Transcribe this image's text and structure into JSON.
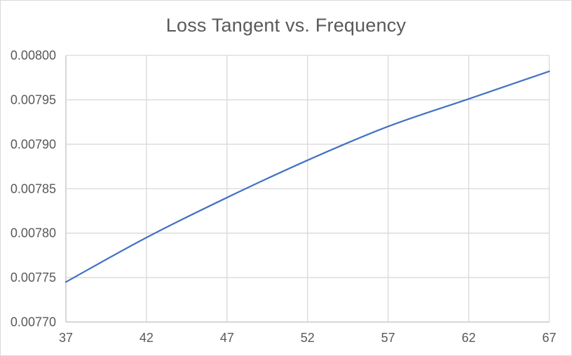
{
  "chart_data": {
    "type": "line",
    "title": "Loss Tangent vs. Frequency",
    "xlabel": "",
    "ylabel": "",
    "x": [
      37,
      42,
      47,
      52,
      57,
      62,
      67
    ],
    "series": [
      {
        "name": "Loss Tangent",
        "values": [
          0.007745,
          0.007795,
          0.00784,
          0.007882,
          0.00792,
          0.007951,
          0.007982
        ]
      }
    ],
    "xlim": [
      37,
      67
    ],
    "ylim": [
      0.0077,
      0.008
    ],
    "x_tick_labels": [
      "37",
      "42",
      "47",
      "52",
      "57",
      "62",
      "67"
    ],
    "y_tick_labels": [
      "0.00770",
      "0.00775",
      "0.00780",
      "0.00785",
      "0.00790",
      "0.00795",
      "0.00800"
    ],
    "grid": true,
    "legend": "none",
    "colors": {
      "series": "#4472C4",
      "gridline": "#D9D9D9",
      "axis_line": "#BFBFBF",
      "tick_label": "#595959",
      "title": "#595959",
      "chart_border": "#D9D9D9",
      "background": "#FFFFFF"
    }
  }
}
